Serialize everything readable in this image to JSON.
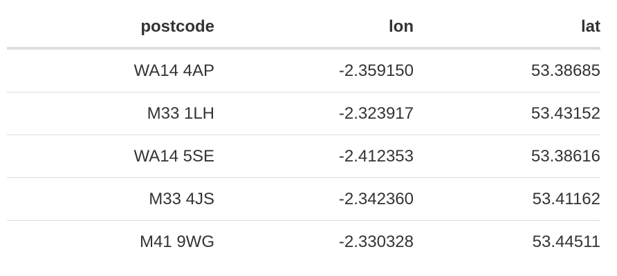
{
  "table": {
    "headers": [
      "postcode",
      "lon",
      "lat"
    ],
    "rows": [
      [
        "WA14 4AP",
        "-2.359150",
        "53.38685"
      ],
      [
        "M33 1LH",
        "-2.323917",
        "53.43152"
      ],
      [
        "WA14 5SE",
        "-2.412353",
        "53.38616"
      ],
      [
        "M33 4JS",
        "-2.342360",
        "53.41162"
      ],
      [
        "M41 9WG",
        "-2.330328",
        "53.44511"
      ]
    ]
  }
}
